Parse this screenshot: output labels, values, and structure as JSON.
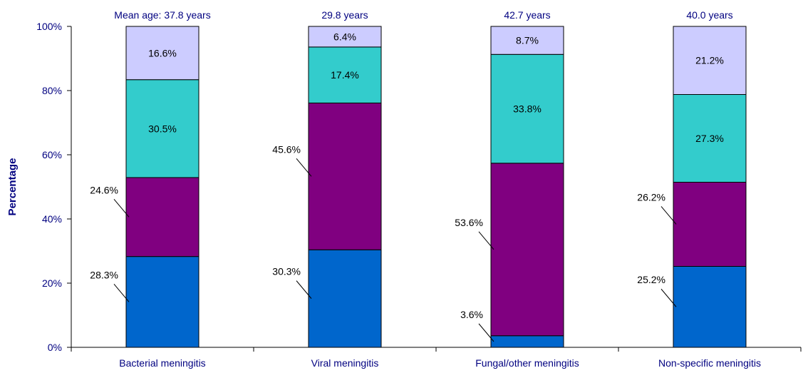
{
  "chart_data": {
    "type": "bar",
    "stacked": true,
    "ylabel": "Percentage",
    "ylim": [
      0,
      100
    ],
    "yticks": [
      "0%",
      "20%",
      "40%",
      "60%",
      "80%",
      "100%"
    ],
    "categories": [
      "Bacterial meningitis",
      "Viral meningitis",
      "Fungal/other meningitis",
      "Non-specific meningitis"
    ],
    "top_labels": [
      "Mean age: 37.8 years",
      "29.8 years",
      "42.7 years",
      "40.0 years"
    ],
    "series": [
      {
        "color": "#0066CC",
        "values": [
          28.3,
          30.3,
          3.6,
          25.2
        ],
        "labels": [
          "28.3%",
          "30.3%",
          "3.6%",
          "25.2%"
        ]
      },
      {
        "color": "#800080",
        "values": [
          24.6,
          45.6,
          53.6,
          26.2
        ],
        "labels": [
          "24.6%",
          "45.6%",
          "53.6%",
          "26.2%"
        ]
      },
      {
        "color": "#33CCCC",
        "values": [
          30.5,
          17.4,
          33.8,
          27.3
        ],
        "labels": [
          "30.5%",
          "17.4%",
          "33.8%",
          "27.3%"
        ]
      },
      {
        "color": "#CCCCFF",
        "values": [
          16.6,
          6.4,
          8.7,
          21.2
        ],
        "labels": [
          "16.6%",
          "6.4%",
          "8.7%",
          "21.2%"
        ]
      }
    ],
    "grid": false,
    "legend": "none",
    "axis_text_color": "#000080"
  }
}
